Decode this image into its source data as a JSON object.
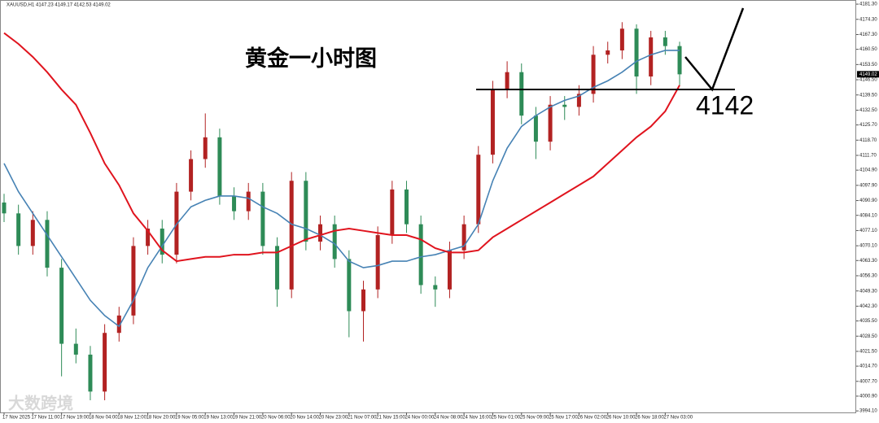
{
  "chart_data": {
    "type": "candlestick",
    "header": "XAUUSD,H1  4147.23 4149.17 4142.53 4149.02",
    "title": "黄金一小时图",
    "watermark": "大数跨境",
    "up_color": "#b22222",
    "down_color": "#2e8b57",
    "categories": [
      "17 Nov 2025",
      null,
      "17 Nov 11:00",
      null,
      "17 Nov 19:00",
      null,
      "18 Nov 04:00",
      null,
      "18 Nov 12:00",
      null,
      "18 Nov 20:00",
      null,
      "19 Nov 05:00",
      null,
      "19 Nov 13:00",
      null,
      "19 Nov 21:00",
      null,
      "20 Nov 06:00",
      null,
      "20 Nov 14:00",
      null,
      "20 Nov 23:00",
      null,
      "21 Nov 07:00",
      null,
      "21 Nov 15:00",
      null,
      "24 Nov 00:00",
      null,
      "24 Nov 08:00",
      null,
      "24 Nov 16:00",
      null,
      "25 Nov 01:00",
      null,
      "25 Nov 09:00",
      null,
      "25 Nov 17:00",
      null,
      "26 Nov 02:00",
      null,
      "26 Nov 10:00",
      null,
      "26 Nov 18:00",
      null,
      "27 Nov 03:00",
      null
    ],
    "open": [
      4090,
      4085,
      4070,
      4082,
      4060,
      4025,
      4020,
      4003,
      4030,
      4038,
      4070,
      4078,
      4066,
      4095,
      4110,
      4120,
      4093,
      4086,
      4095,
      4070,
      4050,
      4100,
      4072,
      4080,
      4064,
      4040,
      4050,
      4075,
      4096,
      4080,
      4052,
      4050,
      4068,
      4080,
      4112,
      4142,
      4150,
      4130,
      4118,
      4135,
      4134,
      4140,
      4158,
      4160,
      4170,
      4148,
      4166,
      4162
    ],
    "high": [
      4094,
      4089,
      4086,
      4086,
      4064,
      4032,
      4024,
      4034,
      4042,
      4074,
      4082,
      4082,
      4099,
      4114,
      4131,
      4124,
      4097,
      4099,
      4099,
      4074,
      4104,
      4104,
      4084,
      4084,
      4068,
      4054,
      4079,
      4100,
      4100,
      4084,
      4056,
      4072,
      4084,
      4116,
      4146,
      4155,
      4154,
      4134,
      4139,
      4139,
      4144,
      4162,
      4164,
      4173,
      4172,
      4169,
      4169,
      4164
    ],
    "low": [
      4081,
      4066,
      4066,
      4056,
      4010,
      4016,
      3999,
      3999,
      4026,
      4034,
      4066,
      4062,
      4062,
      4091,
      4106,
      4089,
      4082,
      4082,
      4066,
      4042,
      4046,
      4068,
      4068,
      4060,
      4028,
      4026,
      4046,
      4071,
      4076,
      4048,
      4042,
      4046,
      4064,
      4076,
      4108,
      4138,
      4126,
      4110,
      4114,
      4128,
      4130,
      4136,
      4154,
      4156,
      4140,
      4144,
      4158,
      4144
    ],
    "close": [
      4085,
      4070,
      4082,
      4060,
      4025,
      4020,
      4003,
      4030,
      4038,
      4070,
      4078,
      4066,
      4095,
      4110,
      4120,
      4093,
      4086,
      4095,
      4070,
      4050,
      4100,
      4072,
      4080,
      4064,
      4040,
      4050,
      4075,
      4096,
      4080,
      4052,
      4050,
      4068,
      4080,
      4112,
      4142,
      4150,
      4130,
      4118,
      4135,
      4134,
      4140,
      4158,
      4160,
      4170,
      4148,
      4166,
      4162,
      4149
    ],
    "series": [
      {
        "color": "#4682b4",
        "values": [
          4108,
          4095,
          4085,
          4075,
          4065,
          4055,
          4045,
          4038,
          4033,
          4045,
          4060,
          4070,
          4080,
          4088,
          4091,
          4093,
          4093,
          4092,
          4088,
          4085,
          4080,
          4078,
          4075,
          4071,
          4063,
          4060,
          4061,
          4063,
          4063,
          4065,
          4066,
          4068,
          4070,
          4080,
          4100,
          4115,
          4125,
          4130,
          4134,
          4137,
          4139,
          4143,
          4146,
          4150,
          4155,
          4158,
          4160,
          4160
        ]
      },
      {
        "color": "#e0141e",
        "values": [
          4168,
          4163,
          4157,
          4150,
          4142,
          4135,
          4122,
          4108,
          4098,
          4085,
          4077,
          4068,
          4063,
          4064,
          4065,
          4065,
          4066,
          4066,
          4067,
          4067,
          4070,
          4073,
          4075,
          4077,
          4078,
          4077,
          4076,
          4075,
          4075,
          4073,
          4069,
          4067,
          4067,
          4068,
          4074,
          4078,
          4082,
          4086,
          4090,
          4094,
          4098,
          4102,
          4108,
          4114,
          4120,
          4125,
          4132,
          4144
        ]
      }
    ],
    "ylim": [
      3993.4,
      4183.2
    ],
    "yticks": [
      {
        "value": 4181.3,
        "label": "4181.30"
      },
      {
        "value": 4174.3,
        "label": "4174.30"
      },
      {
        "value": 4167.3,
        "label": "4167.30"
      },
      {
        "value": 4160.5,
        "label": "4160.50"
      },
      {
        "value": 4153.5,
        "label": "4153.50"
      },
      {
        "value": 4146.5,
        "label": "4146.50"
      },
      {
        "value": 4139.5,
        "label": "4139.50"
      },
      {
        "value": 4132.5,
        "label": "4132.50"
      },
      {
        "value": 4125.7,
        "label": "4125.70"
      },
      {
        "value": 4118.7,
        "label": "4118.70"
      },
      {
        "value": 4111.7,
        "label": "4111.70"
      },
      {
        "value": 4104.9,
        "label": "4104.90"
      },
      {
        "value": 4097.9,
        "label": "4097.90"
      },
      {
        "value": 4090.9,
        "label": "4090.90"
      },
      {
        "value": 4084.1,
        "label": "4084.10"
      },
      {
        "value": 4077.1,
        "label": "4077.10"
      },
      {
        "value": 4070.1,
        "label": "4070.10"
      },
      {
        "value": 4063.3,
        "label": "4063.30"
      },
      {
        "value": 4056.3,
        "label": "4056.30"
      },
      {
        "value": 4049.3,
        "label": "4049.30"
      },
      {
        "value": 4042.3,
        "label": "4042.30"
      },
      {
        "value": 4035.5,
        "label": "4035.50"
      },
      {
        "value": 4028.5,
        "label": "4028.50"
      },
      {
        "value": 4021.5,
        "label": "4021.50"
      },
      {
        "value": 4014.7,
        "label": "4014.70"
      },
      {
        "value": 4007.7,
        "label": "4007.70"
      },
      {
        "value": 4000.9,
        "label": "4000.90"
      },
      {
        "value": 3994.1,
        "label": "3994.10"
      }
    ],
    "last_price": {
      "value": 4149.02,
      "label": "4149.02"
    },
    "level": {
      "value": 4142,
      "label": "4142"
    }
  }
}
